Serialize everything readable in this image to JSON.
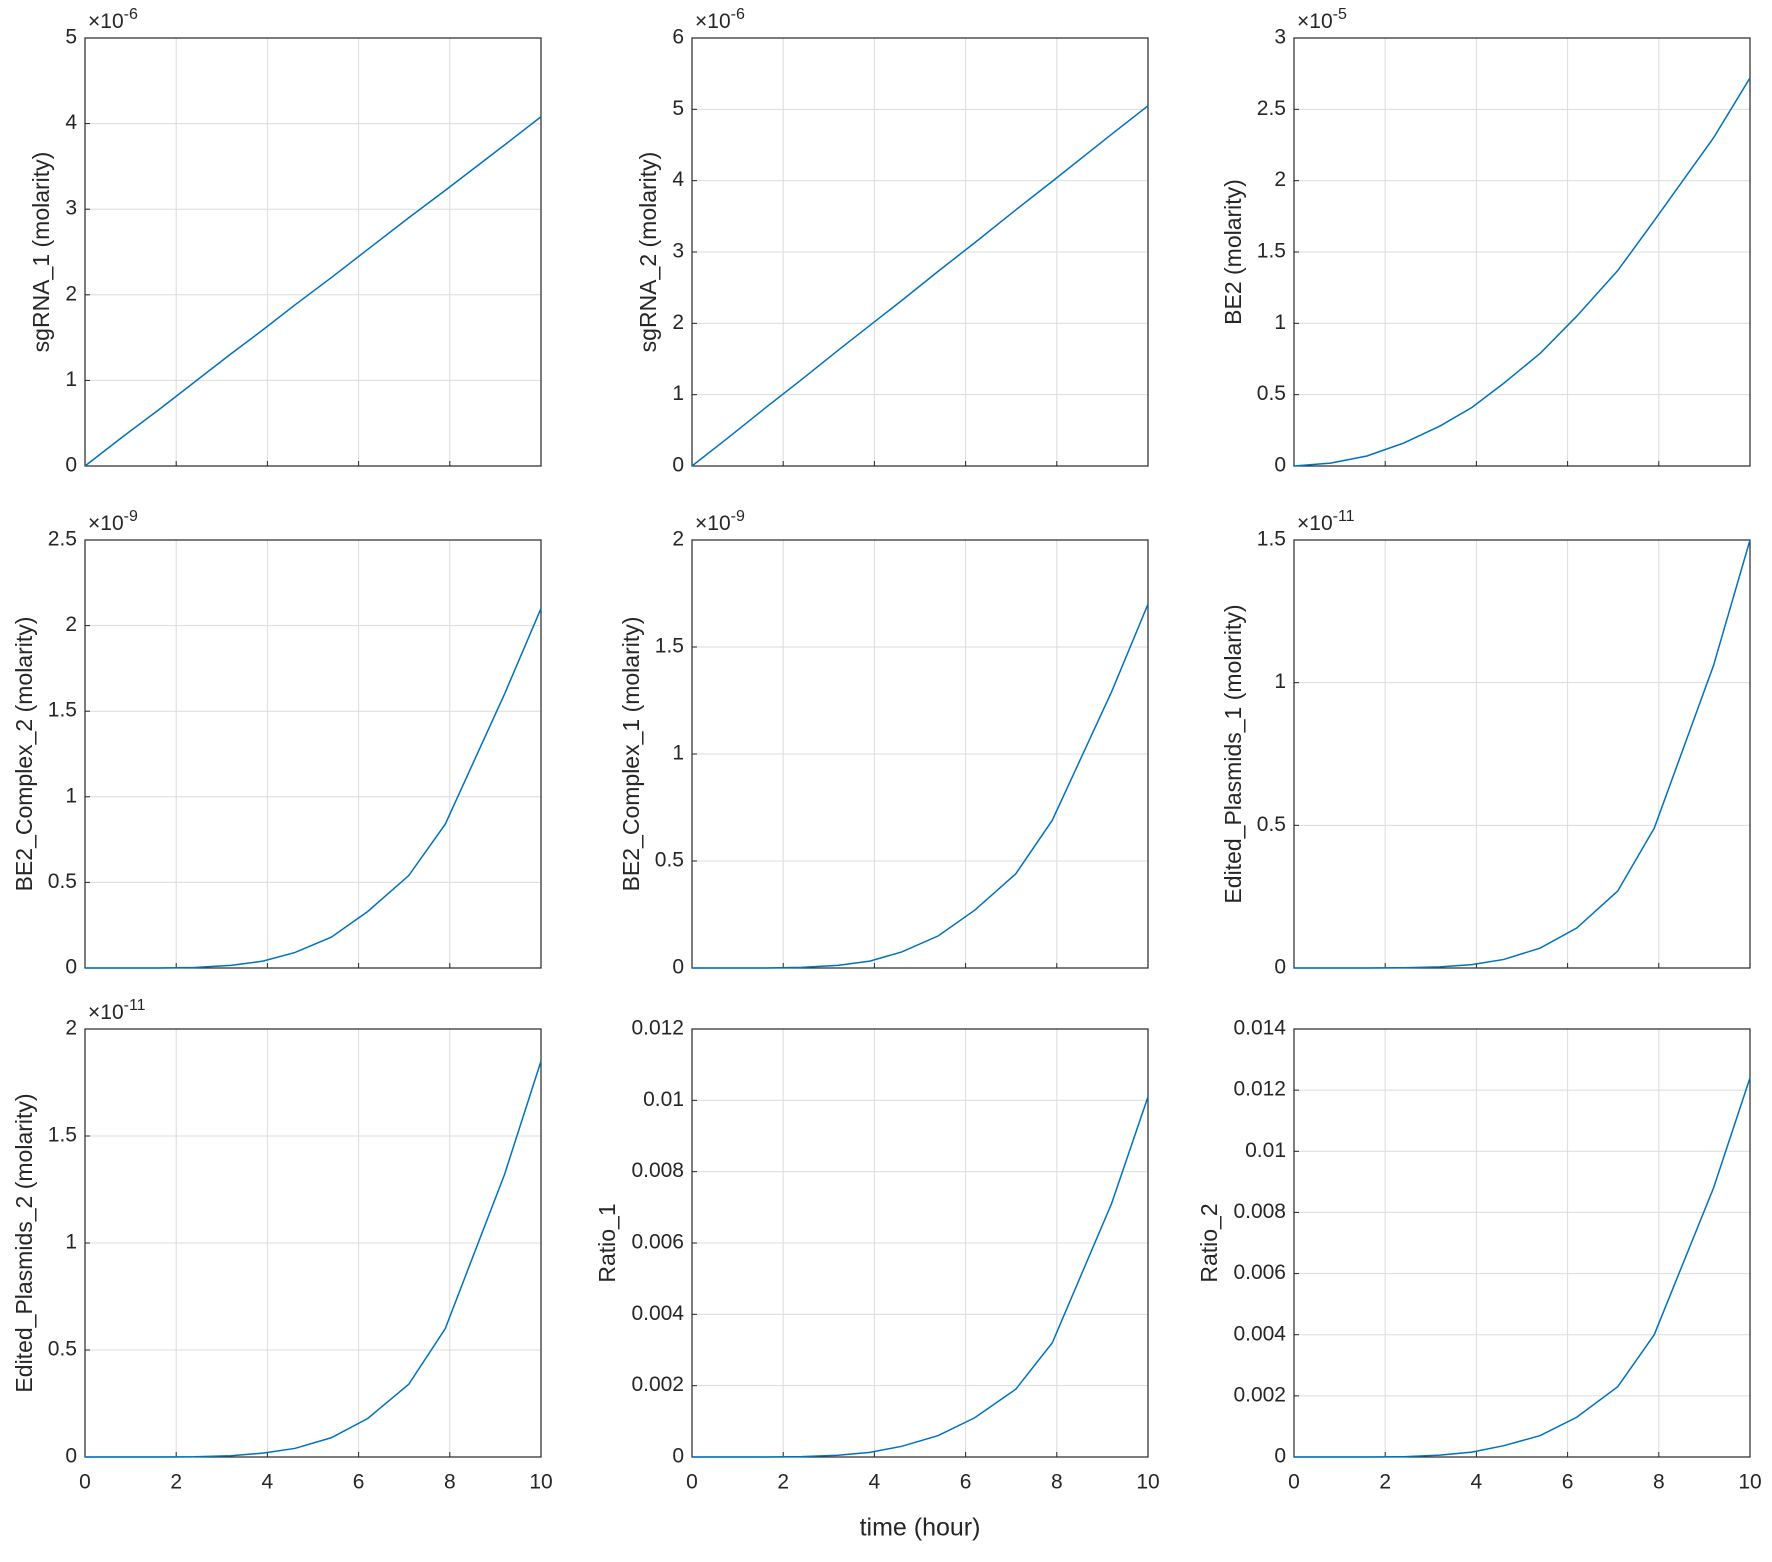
{
  "chart_data": [
    {
      "type": "line",
      "ylabel": "sgRNA_1 (molarity)",
      "y_multiplier_base": "×10",
      "y_exponent": -6,
      "x": [
        0,
        0.8,
        1.6,
        2.4,
        3.2,
        3.9,
        4.6,
        5.4,
        6.2,
        7.1,
        7.9,
        9.2,
        10
      ],
      "values": [
        0,
        0.33,
        0.65,
        0.98,
        1.31,
        1.59,
        1.88,
        2.2,
        2.53,
        2.9,
        3.22,
        3.75,
        4.08
      ],
      "color": "#0072bd",
      "xlim": [
        0,
        10
      ],
      "xticks": [
        0,
        2,
        4,
        6,
        8,
        10
      ],
      "ylim": [
        0,
        5
      ],
      "yticks": [
        0,
        1,
        2,
        3,
        4,
        5
      ],
      "grid": true,
      "show_xtick_labels": false
    },
    {
      "type": "line",
      "ylabel": "sgRNA_2 (molarity)",
      "y_multiplier_base": "×10",
      "y_exponent": -6,
      "x": [
        0,
        0.8,
        1.6,
        2.4,
        3.2,
        3.9,
        4.6,
        5.4,
        6.2,
        7.1,
        7.9,
        9.2,
        10
      ],
      "values": [
        0,
        0.4,
        0.81,
        1.21,
        1.62,
        1.97,
        2.32,
        2.73,
        3.13,
        3.59,
        3.99,
        4.65,
        5.05
      ],
      "color": "#0072bd",
      "xlim": [
        0,
        10
      ],
      "xticks": [
        0,
        2,
        4,
        6,
        8,
        10
      ],
      "ylim": [
        0,
        6
      ],
      "yticks": [
        0,
        1,
        2,
        3,
        4,
        5,
        6
      ],
      "grid": true,
      "show_xtick_labels": false
    },
    {
      "type": "line",
      "ylabel": "BE2 (molarity)",
      "y_multiplier_base": "×10",
      "y_exponent": -5,
      "x": [
        0,
        0.8,
        1.6,
        2.4,
        3.2,
        3.9,
        4.6,
        5.4,
        6.2,
        7.1,
        7.9,
        9.2,
        10
      ],
      "values": [
        0,
        0.02,
        0.07,
        0.16,
        0.28,
        0.41,
        0.58,
        0.79,
        1.05,
        1.37,
        1.72,
        2.3,
        2.72
      ],
      "color": "#0072bd",
      "xlim": [
        0,
        10
      ],
      "xticks": [
        0,
        2,
        4,
        6,
        8,
        10
      ],
      "ylim": [
        0,
        3
      ],
      "yticks": [
        0,
        0.5,
        1,
        1.5,
        2,
        2.5,
        3
      ],
      "grid": true,
      "show_xtick_labels": false
    },
    {
      "type": "line",
      "ylabel": "BE2_Complex_2 (molarity)",
      "y_multiplier_base": "×10",
      "y_exponent": -9,
      "x": [
        0,
        0.8,
        1.6,
        2.4,
        3.2,
        3.9,
        4.6,
        5.4,
        6.2,
        7.1,
        7.9,
        9.2,
        10
      ],
      "values": [
        0,
        0,
        0,
        0.003,
        0.015,
        0.04,
        0.09,
        0.18,
        0.33,
        0.54,
        0.84,
        1.6,
        2.1
      ],
      "color": "#0072bd",
      "xlim": [
        0,
        10
      ],
      "xticks": [
        0,
        2,
        4,
        6,
        8,
        10
      ],
      "ylim": [
        0,
        2.5
      ],
      "yticks": [
        0,
        0.5,
        1,
        1.5,
        2,
        2.5
      ],
      "grid": true,
      "show_xtick_labels": false
    },
    {
      "type": "line",
      "ylabel": "BE2_Complex_1 (molarity)",
      "y_multiplier_base": "×10",
      "y_exponent": -9,
      "x": [
        0,
        0.8,
        1.6,
        2.4,
        3.2,
        3.9,
        4.6,
        5.4,
        6.2,
        7.1,
        7.9,
        9.2,
        10
      ],
      "values": [
        0,
        0,
        0,
        0.003,
        0.012,
        0.032,
        0.075,
        0.15,
        0.27,
        0.44,
        0.69,
        1.29,
        1.7
      ],
      "color": "#0072bd",
      "xlim": [
        0,
        10
      ],
      "xticks": [
        0,
        2,
        4,
        6,
        8,
        10
      ],
      "ylim": [
        0,
        2
      ],
      "yticks": [
        0,
        0.5,
        1,
        1.5,
        2
      ],
      "grid": true,
      "show_xtick_labels": false
    },
    {
      "type": "line",
      "ylabel": "Edited_Plasmids_1 (molarity)",
      "y_multiplier_base": "×10",
      "y_exponent": -11,
      "x": [
        0,
        0.8,
        1.6,
        2.4,
        3.2,
        3.9,
        4.6,
        5.4,
        6.2,
        7.1,
        7.9,
        9.2,
        10
      ],
      "values": [
        0,
        0,
        0,
        0.001,
        0.004,
        0.012,
        0.03,
        0.07,
        0.14,
        0.27,
        0.49,
        1.06,
        1.5
      ],
      "color": "#0072bd",
      "xlim": [
        0,
        10
      ],
      "xticks": [
        0,
        2,
        4,
        6,
        8,
        10
      ],
      "ylim": [
        0,
        1.5
      ],
      "yticks": [
        0,
        0.5,
        1,
        1.5
      ],
      "grid": true,
      "show_xtick_labels": false
    },
    {
      "type": "line",
      "ylabel": "Edited_Plasmids_2 (molarity)",
      "y_multiplier_base": "×10",
      "y_exponent": -11,
      "x": [
        0,
        0.8,
        1.6,
        2.4,
        3.2,
        3.9,
        4.6,
        5.4,
        6.2,
        7.1,
        7.9,
        9.2,
        10
      ],
      "values": [
        0,
        0,
        0,
        0.001,
        0.006,
        0.018,
        0.04,
        0.09,
        0.18,
        0.34,
        0.6,
        1.32,
        1.85
      ],
      "color": "#0072bd",
      "xlim": [
        0,
        10
      ],
      "xticks": [
        0,
        2,
        4,
        6,
        8,
        10
      ],
      "ylim": [
        0,
        2
      ],
      "yticks": [
        0,
        0.5,
        1,
        1.5,
        2
      ],
      "grid": true,
      "show_xtick_labels": true
    },
    {
      "type": "line",
      "ylabel": "Ratio_1",
      "xlabel": "time (hour)",
      "x": [
        0,
        0.8,
        1.6,
        2.4,
        3.2,
        3.9,
        4.6,
        5.4,
        6.2,
        7.1,
        7.9,
        9.2,
        10
      ],
      "values": [
        0,
        0,
        0,
        1e-05,
        5e-05,
        0.00013,
        0.0003,
        0.0006,
        0.0011,
        0.0019,
        0.0032,
        0.0071,
        0.0101
      ],
      "color": "#0072bd",
      "xlim": [
        0,
        10
      ],
      "xticks": [
        0,
        2,
        4,
        6,
        8,
        10
      ],
      "ylim": [
        0,
        0.012
      ],
      "yticks": [
        0,
        0.002,
        0.004,
        0.006,
        0.008,
        0.01,
        0.012
      ],
      "grid": true,
      "show_xtick_labels": true
    },
    {
      "type": "line",
      "ylabel": "Ratio_2",
      "x": [
        0,
        0.8,
        1.6,
        2.4,
        3.2,
        3.9,
        4.6,
        5.4,
        6.2,
        7.1,
        7.9,
        9.2,
        10
      ],
      "values": [
        0,
        0,
        0,
        1e-05,
        6e-05,
        0.00016,
        0.00037,
        0.0007,
        0.0013,
        0.0023,
        0.004,
        0.0088,
        0.0124
      ],
      "color": "#0072bd",
      "xlim": [
        0,
        10
      ],
      "xticks": [
        0,
        2,
        4,
        6,
        8,
        10
      ],
      "ylim": [
        0,
        0.014
      ],
      "yticks": [
        0,
        0.002,
        0.004,
        0.006,
        0.008,
        0.01,
        0.012,
        0.014
      ],
      "grid": true,
      "show_xtick_labels": true
    }
  ]
}
